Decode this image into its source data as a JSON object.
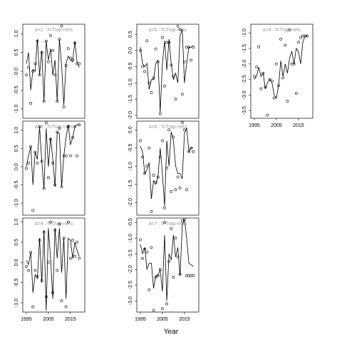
{
  "figure": {
    "xlabel": "Year"
  },
  "chart_data": [
    {
      "type": "line",
      "title": "a=2 : f=Trap-nets",
      "title_color": "#999999",
      "x": [
        1995,
        1996,
        1997,
        1998,
        1999,
        2000,
        2001,
        2002,
        2003,
        2004,
        2005,
        2006,
        2007,
        2008,
        2009,
        2010,
        2011,
        2012,
        2013,
        2014,
        2015,
        2016,
        2017,
        2018,
        2019
      ],
      "xlim": [
        1993.4,
        2021.5
      ],
      "ylim": [
        -1.25,
        1.25
      ],
      "yticks": [
        {
          "value": -1,
          "label": "-1.0"
        },
        -0.5,
        {
          "value": 0,
          "label": "0.0"
        },
        0.5,
        {
          "value": 1,
          "label": "1.0"
        }
      ],
      "series": [
        {
          "style": "line",
          "color": "#000000",
          "values": [
            0.2,
            0.5,
            -0.5,
            0.05,
            0.0,
            0.85,
            -0.1,
            0.55,
            -0.8,
            0.8,
            0.3,
            0.6,
            -0.1,
            0.3,
            -0.8,
            0.85,
            0.15,
            -0.9,
            0.2,
            0.4,
            0.3,
            0.25,
            0.8,
            0.25,
            0.1
          ]
        },
        {
          "style": "open-circle",
          "color": "#000000",
          "values": [
            -0.1,
            0.1,
            -0.85,
            0.0,
            0.2,
            0.8,
            -0.1,
            0.5,
            -0.8,
            0.8,
            0.25,
            0.95,
            0.55,
            -0.1,
            -0.8,
            0.85,
            1.2,
            -0.95,
            0.15,
            0.6,
            0.35,
            0.3,
            0.75,
            0.2,
            0.2
          ]
        }
      ]
    },
    {
      "type": "line",
      "title": "a=3 : f=Trap-nets",
      "title_color": "#999999",
      "x": [
        1995,
        1996,
        1997,
        1998,
        1999,
        2000,
        2001,
        2002,
        2003,
        2004,
        2005,
        2006,
        2007,
        2008,
        2009,
        2010,
        2011,
        2012,
        2013,
        2014,
        2015,
        2016,
        2017,
        2018,
        2019
      ],
      "xlim": [
        1993.4,
        2021.5
      ],
      "ylim": [
        -1.33,
        1.25
      ],
      "yticks": [
        {
          "value": -1,
          "label": "-1.0"
        },
        -0.5,
        {
          "value": 0,
          "label": "0.0"
        },
        0.5,
        {
          "value": 1,
          "label": "1.0"
        }
      ],
      "series": [
        {
          "style": "line",
          "color": "#000000",
          "values": [
            0.0,
            0.3,
            0.55,
            -0.5,
            0.4,
            0.2,
            1.1,
            0.15,
            -0.6,
            1.05,
            0.0,
            0.8,
            0.2,
            -0.55,
            0.95,
            0.9,
            -0.55,
            0.3,
            0.8,
            1.15,
            0.6,
            0.8,
            1.1,
            1.15,
            1.15
          ]
        },
        {
          "style": "open-circle",
          "color": "#000000",
          "values": [
            -0.05,
            0.1,
            0.55,
            -1.2,
            0.4,
            0.1,
            1.1,
            0.15,
            -0.6,
            1.2,
            -0.3,
            0.75,
            0.1,
            -0.5,
            0.95,
            1.05,
            -0.55,
            0.3,
            0.3,
            1.1,
            0.3,
            0.8,
            1.1,
            0.3,
            1.15
          ]
        }
      ]
    },
    {
      "type": "line",
      "title": "a=4 : f=Trap-nets",
      "title_color": "#999999",
      "x": [
        1995,
        1996,
        1997,
        1998,
        1999,
        2000,
        2001,
        2002,
        2003,
        2004,
        2005,
        2006,
        2007,
        2008,
        2009,
        2010,
        2011,
        2012,
        2013,
        2014,
        2015,
        2016,
        2017,
        2018,
        2019
      ],
      "xlim": [
        1993.4,
        2021.5
      ],
      "ylim": [
        -1.23,
        1.1
      ],
      "xticks": [
        1995,
        2005,
        2015
      ],
      "yticks": [
        {
          "value": -1,
          "label": "-1.0"
        },
        -0.5,
        {
          "value": 0,
          "label": "0.0"
        },
        0.5,
        {
          "value": 1,
          "label": "1.0"
        }
      ],
      "series": [
        {
          "style": "line",
          "color": "#000000",
          "values": [
            0.05,
            -0.05,
            0.25,
            -0.75,
            -0.3,
            -0.4,
            0.6,
            -0.5,
            0.8,
            -1.2,
            0.85,
            0.1,
            -0.9,
            0.85,
            0.1,
            0.85,
            -0.25,
            0.6,
            -0.9,
            0.6,
            0.55,
            0.1,
            0.5,
            0.3,
            0.15
          ]
        },
        {
          "style": "open-circle",
          "color": "#000000",
          "values": [
            -0.1,
            -0.2,
            0.25,
            -1.1,
            -0.2,
            -0.35,
            0.55,
            -0.45,
            0.75,
            -0.85,
            0.0,
            1.0,
            -0.75,
            0.8,
            -0.2,
            0.95,
            -0.95,
            0.6,
            -1.1,
            1.0,
            0.1,
            0.55,
            0.15,
            0.5,
            0.1
          ]
        }
      ]
    },
    {
      "type": "line",
      "title": "a=5 : f=Trap-nets",
      "title_color": "#999999",
      "x": [
        1995,
        1996,
        1997,
        1998,
        1999,
        2000,
        2001,
        2002,
        2003,
        2004,
        2005,
        2006,
        2007,
        2008,
        2009,
        2010,
        2011,
        2012,
        2013,
        2014,
        2015,
        2016,
        2017,
        2018,
        2019
      ],
      "xlim": [
        1993.4,
        2021.5
      ],
      "ylim": [
        -2.09,
        0.81
      ],
      "yticks": [
        {
          "value": -2,
          "label": "-2.0"
        },
        -1.5,
        {
          "value": -1,
          "label": "-1.0"
        },
        -0.5,
        {
          "value": 0,
          "label": "0.0"
        },
        0.5
      ],
      "series": [
        {
          "style": "line",
          "color": "#000000",
          "values": [
            0.1,
            -0.4,
            -0.5,
            -0.4,
            -1.2,
            -0.9,
            -0.9,
            -0.4,
            -0.3,
            -1.9,
            -0.4,
            0.3,
            -0.6,
            0.35,
            -0.4,
            -0.9,
            -0.7,
            -1.0,
            0.45,
            0.65,
            -1.0,
            -0.4,
            0.1,
            0.1,
            0.15
          ]
        },
        {
          "style": "open-circle",
          "color": "#000000",
          "values": [
            0.0,
            -0.5,
            -0.65,
            0.3,
            -1.0,
            -1.3,
            -0.85,
            0.05,
            -0.35,
            -1.95,
            0.4,
            -1.1,
            0.25,
            0.25,
            -0.45,
            -0.8,
            -1.5,
            0.75,
            0.65,
            -1.35,
            -0.35,
            0.1,
            0.1,
            -0.3,
            0.1
          ]
        }
      ]
    },
    {
      "type": "line",
      "title": "a=6 : f=Trap-nets",
      "title_color": "#999999",
      "x": [
        1995,
        1996,
        1997,
        1998,
        1999,
        2000,
        2001,
        2002,
        2003,
        2004,
        2005,
        2006,
        2007,
        2008,
        2009,
        2010,
        2011,
        2012,
        2013,
        2014,
        2015,
        2016,
        2017,
        2018,
        2019
      ],
      "xlim": [
        1993.4,
        2021.5
      ],
      "ylim": [
        -2.35,
        0.24
      ],
      "yticks": [
        {
          "value": -2,
          "label": "-2.0"
        },
        -1.5,
        {
          "value": -1,
          "label": "-1.0"
        },
        -0.5,
        {
          "value": 0,
          "label": "0.0"
        }
      ],
      "series": [
        {
          "style": "line",
          "color": "#000000",
          "values": [
            -0.45,
            -0.6,
            -1.2,
            -1.1,
            -0.9,
            -1.9,
            -1.4,
            -1.5,
            -1.3,
            -0.5,
            -1.2,
            -2.1,
            -0.3,
            -1.0,
            -0.05,
            -0.3,
            -1.0,
            -1.2,
            -1.2,
            -1.35,
            -0.1,
            0.05,
            -0.6,
            -0.5,
            -0.5
          ]
        },
        {
          "style": "open-circle",
          "color": "#000000",
          "values": [
            -0.3,
            -0.75,
            -1.2,
            -1.0,
            -0.5,
            -2.25,
            -1.25,
            -1.45,
            -1.3,
            -0.75,
            -0.3,
            -2.15,
            -1.05,
            0.0,
            -1.7,
            -0.2,
            -1.65,
            -1.3,
            -1.6,
            0.2,
            0.0,
            -1.65,
            -0.6,
            -0.5,
            -0.6
          ]
        }
      ]
    },
    {
      "type": "line",
      "title": "a=7 : f=Trap-nets",
      "title_color": "#999999",
      "x": [
        1995,
        1996,
        1997,
        1998,
        1999,
        2000,
        2001,
        2002,
        2003,
        2004,
        2005,
        2006,
        2007,
        2008,
        2009,
        2010,
        2011,
        2012,
        2013,
        2014,
        2015,
        2016,
        2017,
        2018,
        2019
      ],
      "xlim": [
        1993.4,
        2021.5
      ],
      "ylim": [
        -3.36,
        -0.36
      ],
      "xticks": [
        1995,
        2005,
        2015
      ],
      "yticks": [
        {
          "value": -3,
          "label": "-3.0"
        },
        -2.5,
        {
          "value": -2,
          "label": "-2.0"
        },
        -1.5,
        {
          "value": -1,
          "label": "-1.0"
        },
        -0.5
      ],
      "series": [
        {
          "style": "line",
          "color": "#000000",
          "values": [
            -1.2,
            -1.5,
            -1.3,
            -2.0,
            -1.8,
            -1.8,
            -2.6,
            -2.2,
            -2.2,
            -2.0,
            -2.7,
            -0.9,
            -3.0,
            -1.5,
            -1.7,
            -0.9,
            -1.6,
            -1.3,
            -2.2,
            -0.6,
            -0.4,
            -1.0,
            -1.8,
            -1.85,
            -1.9
          ]
        },
        {
          "style": "open-circle",
          "color": "#000000",
          "values": [
            -1.05,
            -1.65,
            -1.35,
            -1.45,
            -2.65,
            -1.3,
            -3.3,
            -2.25,
            -2.2,
            -2.0,
            -3.25,
            -0.5,
            -3.1,
            -1.75,
            -0.7,
            -2.25,
            -1.0,
            -1.6,
            -2.15,
            -0.45,
            -0.4,
            -2.2,
            -2.2,
            -2.2,
            -2.2
          ]
        }
      ]
    },
    {
      "type": "line",
      "title": "a=8 : f=Trap-nets",
      "title_color": "#999999",
      "x": [
        1995,
        1996,
        1997,
        1998,
        1999,
        2000,
        2001,
        2002,
        2003,
        2004,
        2005,
        2006,
        2007,
        2008,
        2009,
        2010,
        2011,
        2012,
        2013,
        2014,
        2015,
        2016,
        2017,
        2018,
        2019
      ],
      "xlim": [
        1993.4,
        2021.5
      ],
      "ylim": [
        -3.75,
        -0.72
      ],
      "xticks": [
        1995,
        2005,
        2015
      ],
      "yticks": [
        -3.5,
        {
          "value": -3,
          "label": "-3.0"
        },
        -2.5,
        {
          "value": -2,
          "label": "-2.0"
        },
        -1.5,
        {
          "value": -1,
          "label": "-1.0"
        }
      ],
      "series": [
        {
          "style": "line",
          "color": "#000000",
          "values": [
            -2.5,
            -2.4,
            -2.1,
            -2.4,
            -2.3,
            -2.8,
            -2.6,
            -2.5,
            -2.6,
            -3.0,
            -3.1,
            -2.7,
            -1.9,
            -2.4,
            -2.0,
            -2.3,
            -1.8,
            -1.6,
            -2.0,
            -1.5,
            -1.6,
            -2.0,
            -1.3,
            -1.1,
            -1.1
          ]
        },
        {
          "style": "open-circle",
          "color": "#000000",
          "values": [
            -2.4,
            -2.1,
            -1.45,
            -2.8,
            -2.3,
            -2.75,
            -3.65,
            -2.5,
            -2.55,
            -3.1,
            -2.0,
            -2.7,
            -1.2,
            -2.45,
            -1.4,
            -3.2,
            -0.9,
            -2.0,
            -2.0,
            -2.95,
            -1.3,
            -1.15,
            -1.1,
            -1.1,
            -1.1
          ]
        }
      ]
    }
  ]
}
